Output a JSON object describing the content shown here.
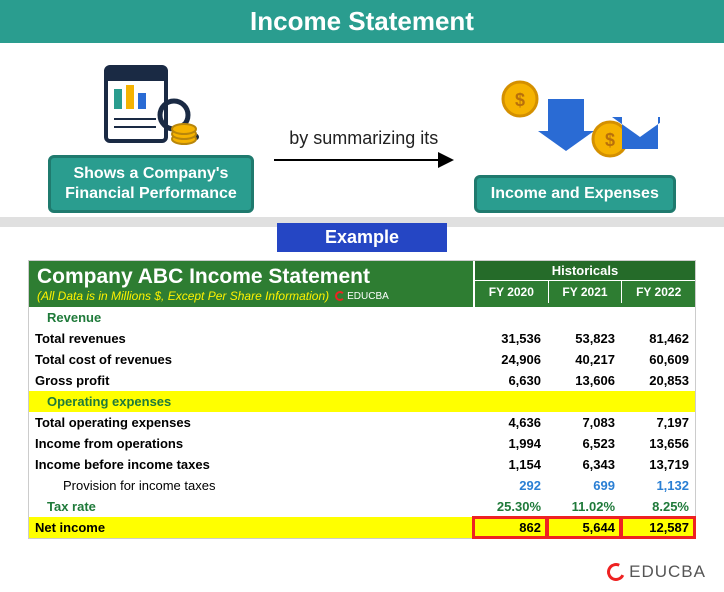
{
  "title": "Income Statement",
  "diagram": {
    "left_label": "Shows a Company's\nFinancial Performance",
    "connector": "by summarizing its",
    "right_label": "Income and Expenses"
  },
  "example_tag": "Example",
  "statement": {
    "title": "Company ABC Income Statement",
    "subtitle": "(All Data is in Millions $, Except Per Share Information)",
    "historicals_label": "Historicals",
    "years": [
      "FY 2020",
      "FY 2021",
      "FY 2022"
    ],
    "rows": [
      {
        "kind": "section",
        "label": "Revenue"
      },
      {
        "kind": "data",
        "label": "Total revenues",
        "values": [
          "31,536",
          "53,823",
          "81,462"
        ]
      },
      {
        "kind": "data",
        "label": "Total cost of revenues",
        "values": [
          "24,906",
          "40,217",
          "60,609"
        ]
      },
      {
        "kind": "data",
        "label": "Gross profit",
        "values": [
          "6,630",
          "13,606",
          "20,853"
        ]
      },
      {
        "kind": "section_yellow",
        "label": "Operating expenses"
      },
      {
        "kind": "data",
        "label": "Total operating expenses",
        "values": [
          "4,636",
          "7,083",
          "7,197"
        ]
      },
      {
        "kind": "data",
        "label": "Income from operations",
        "values": [
          "1,994",
          "6,523",
          "13,656"
        ]
      },
      {
        "kind": "data",
        "label": "Income before income taxes",
        "values": [
          "1,154",
          "6,343",
          "13,719"
        ]
      },
      {
        "kind": "indent_blue",
        "label": "Provision for income taxes",
        "values": [
          "292",
          "699",
          "1,132"
        ]
      },
      {
        "kind": "section_data",
        "label": "Tax rate",
        "values": [
          "25.30%",
          "11.02%",
          "8.25%"
        ]
      },
      {
        "kind": "net_yellow",
        "label": "Net income",
        "values": [
          "862",
          "5,644",
          "12,587"
        ]
      }
    ]
  },
  "brand": "EDUCBA",
  "colors": {
    "teal": "#2a9d8f",
    "dark_teal": "#1f7a6e",
    "blue": "#2546c4",
    "green_header": "#2e7d32",
    "yellow": "#ffff00",
    "red": "#e22222",
    "coin": "#f5b301",
    "arrow_blue": "#2a6bd4"
  }
}
